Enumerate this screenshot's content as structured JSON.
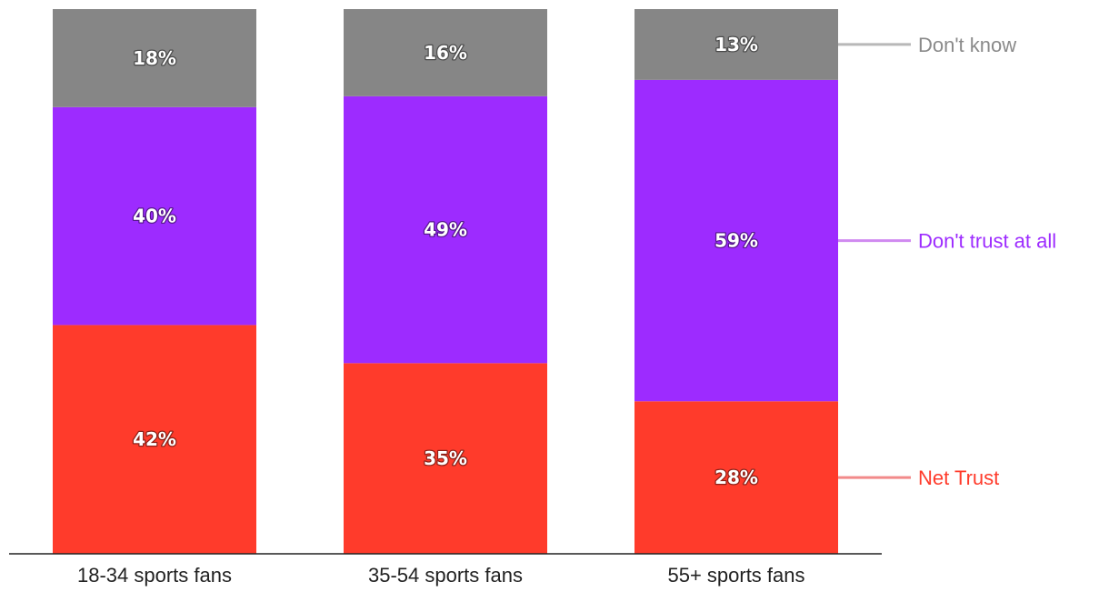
{
  "chart_data": {
    "type": "bar",
    "stacked": true,
    "normalized": true,
    "categories": [
      "18-34 sports fans",
      "35-54 sports fans",
      "55+ sports fans"
    ],
    "series": [
      {
        "name": "Net Trust",
        "values": [
          42,
          35,
          28
        ],
        "labels": [
          "42%",
          "35%",
          "28%"
        ],
        "color": "#ff3b2b",
        "legend_line_color": "#f28a8a"
      },
      {
        "name": "Don't trust at all",
        "values": [
          40,
          49,
          59
        ],
        "labels": [
          "40%",
          "49%",
          "59%"
        ],
        "color": "#9d2bff",
        "legend_line_color": "#d08af0"
      },
      {
        "name": "Don't know",
        "values": [
          18,
          16,
          13
        ],
        "labels": [
          "18%",
          "16%",
          "13%"
        ],
        "color": "#868686",
        "legend_line_color": "#b8b8b8"
      }
    ],
    "label_text_color": "#ffffff",
    "axis_color": "#222222",
    "legend_placement": "right",
    "grid": false
  }
}
